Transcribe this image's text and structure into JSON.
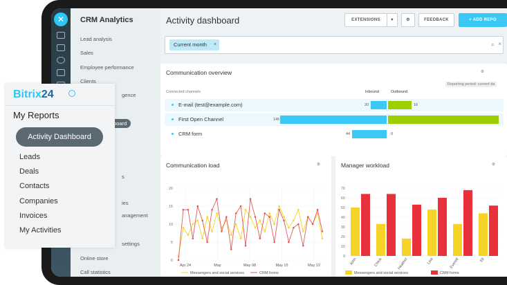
{
  "rail": {
    "close_icon": "close-icon"
  },
  "nav": {
    "title": "CRM Analytics",
    "items": [
      "Lead analysis",
      "Sales",
      "Employee performance",
      "Clients",
      "gence",
      "ashboard",
      "s",
      "ies",
      "anagement",
      "settings",
      "Online store",
      "Call statistics"
    ]
  },
  "header": {
    "title": "Activity dashboard",
    "extensions": "EXTENSIONS",
    "dropdown": "▾",
    "feedback": "FEEDBACK",
    "add_report": "ADD REPO"
  },
  "filter": {
    "chip": "Current month",
    "chip_close": "×",
    "clear": "×"
  },
  "overview": {
    "title": "Communication overview",
    "connected_channels": "Connected channels",
    "inbound": "Inbound",
    "outbound": "Outbound",
    "period": "Reporting period: current da",
    "rows": [
      {
        "label": "E-mail (test@example.com)",
        "inbound": "20",
        "outbound": "16"
      },
      {
        "label": "First Open Channel",
        "inbound": "145",
        "outbound": ""
      },
      {
        "label": "CRM form",
        "inbound": "44",
        "outbound": "0"
      }
    ]
  },
  "load": {
    "title": "Communication load",
    "legend": [
      "Messengers and social services",
      "CRM forms"
    ]
  },
  "workload": {
    "title": "Manager workload",
    "legend": [
      "Messengers and social services",
      "CRM forms"
    ]
  },
  "overlay": {
    "brand": "Bitrix",
    "brand_num": "24",
    "heading": "My Reports",
    "active": "Activity Dashboard",
    "items": [
      "Leads",
      "Deals",
      "Contacts",
      "Companies",
      "Invoices",
      "My Activities"
    ]
  },
  "chart_data": [
    {
      "type": "line",
      "title": "Communication load",
      "y_ticks": [
        "0",
        "5",
        "10",
        "15",
        "20"
      ],
      "ylim": [
        0,
        20
      ],
      "x_ticks": [
        "Apr 24",
        "May",
        "May 08",
        "May 15",
        "May 22"
      ],
      "series": [
        {
          "name": "Messengers and social services",
          "color": "#f5d327",
          "values": [
            1,
            9,
            7,
            10,
            11,
            6,
            12,
            8,
            13,
            9,
            11,
            7,
            10,
            6,
            14,
            12,
            9,
            11,
            8,
            13,
            10,
            15,
            12,
            9,
            11,
            14,
            8,
            12,
            10,
            13,
            6
          ]
        },
        {
          "name": "CRM forms",
          "color": "#e05a5a",
          "values": [
            0,
            14,
            14,
            6,
            15,
            11,
            5,
            14,
            17,
            8,
            12,
            3,
            13,
            15,
            4,
            17,
            12,
            6,
            13,
            12,
            5,
            14,
            11,
            5,
            9,
            10,
            4,
            12,
            10,
            14,
            8
          ]
        }
      ]
    },
    {
      "type": "bar",
      "title": "Manager workload",
      "y_ticks": [
        "0",
        "10",
        "20",
        "30",
        "40",
        "50",
        "60",
        "70"
      ],
      "ylim": [
        0,
        70
      ],
      "categories": [
        "John",
        "Chloe",
        "Heather",
        "Lisa",
        "Everett",
        "Eli"
      ],
      "series": [
        {
          "name": "Messengers and social services",
          "color": "#f5d327",
          "values": [
            50,
            33,
            18,
            48,
            33,
            44
          ]
        },
        {
          "name": "CRM forms",
          "color": "#e8313b",
          "values": [
            64,
            64,
            53,
            60,
            68,
            52
          ]
        }
      ]
    }
  ]
}
